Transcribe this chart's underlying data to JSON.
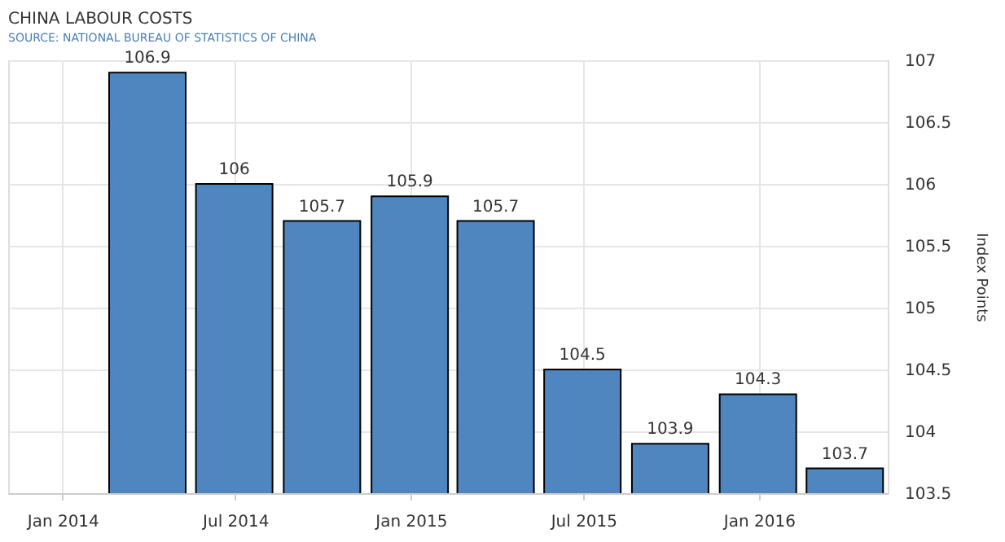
{
  "chart_data": {
    "type": "bar",
    "title": "CHINA LABOUR COSTS",
    "ylabel": "Index Points",
    "x": [
      "2014-03-31",
      "2014-06-30",
      "2014-09-30",
      "2014-12-31",
      "2015-03-31",
      "2015-06-30",
      "2015-09-30",
      "2015-12-31",
      "2016-03-31"
    ],
    "values": [
      106.9,
      106,
      105.7,
      105.9,
      105.7,
      104.5,
      103.9,
      104.3,
      103.7
    ],
    "color": "#4f86c0",
    "data_labels": true,
    "ylim": [
      103.5,
      107
    ],
    "yticks": [
      103.5,
      104,
      104.5,
      105,
      105.5,
      106,
      106.5,
      107
    ],
    "xlim": [
      "2013-11-05",
      "2016-05-15"
    ],
    "xticks": [
      {
        "value": "2014-01-01",
        "label": "Jan 2014"
      },
      {
        "value": "2014-07-01",
        "label": "Jul 2014"
      },
      {
        "value": "2015-01-01",
        "label": "Jan 2015"
      },
      {
        "value": "2015-07-01",
        "label": "Jul 2015"
      },
      {
        "value": "2016-01-01",
        "label": "Jan 2016"
      }
    ],
    "grid": true,
    "annotations": [
      "SOURCE: NATIONAL BUREAU OF STATISTICS OF CHINA"
    ]
  }
}
